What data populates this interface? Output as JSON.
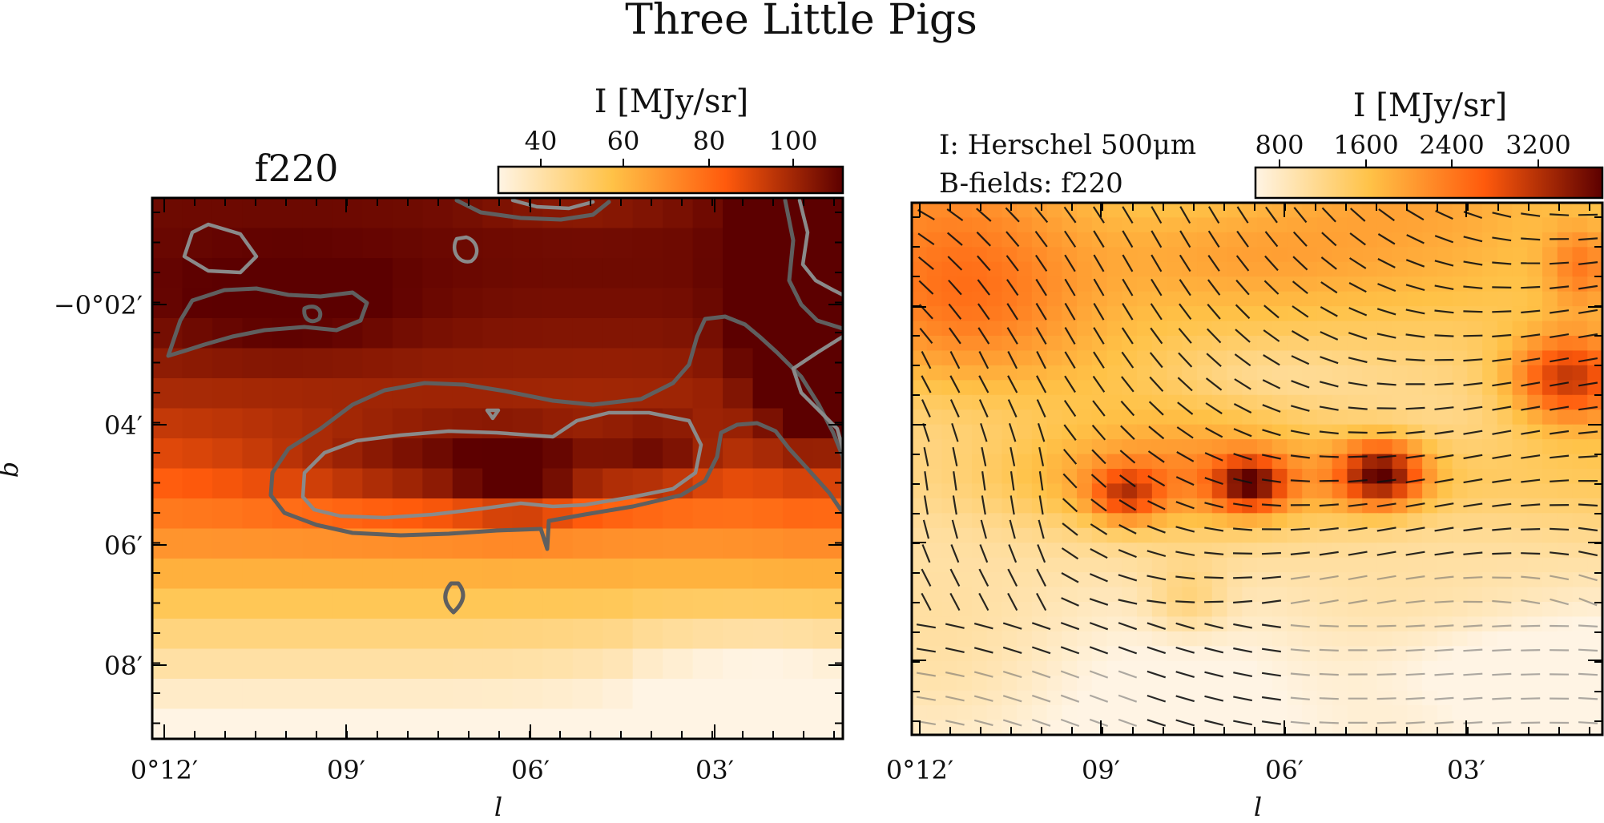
{
  "figure": {
    "title": "Three Little Pigs"
  },
  "chart_data": [
    {
      "type": "heatmap",
      "panel_label": "f220",
      "overlay": "contour",
      "xlabel": "l",
      "ylabel": "b",
      "x_ticklabels": [
        "0°12′",
        "09′",
        "06′",
        "03′"
      ],
      "y_ticklabels": [
        "−0°02′",
        "04′",
        "06′",
        "08′"
      ],
      "colorbar": {
        "label": "I [MJy/sr]",
        "ticklabels": [
          "40",
          "60",
          "80",
          "100"
        ],
        "range": [
          28,
          115
        ],
        "colors": [
          "#fff4e4",
          "#ffc247",
          "#ff5a0c",
          "#5c0000"
        ],
        "location": "top-right"
      },
      "grid": false
    },
    {
      "type": "heatmap",
      "overlay": "polarization vectors",
      "annotation_lines": [
        "I: Herschel 500μm",
        "B-fields: f220"
      ],
      "xlabel": "l",
      "ylabel": "",
      "x_ticklabels": [
        "0°12′",
        "09′",
        "06′",
        "03′"
      ],
      "colorbar": {
        "label": "I [MJy/sr]",
        "ticklabels": [
          "800",
          "1600",
          "2400",
          "3200"
        ],
        "range": [
          400,
          3700
        ],
        "colors": [
          "#fff4e4",
          "#ffc247",
          "#ff5a0c",
          "#5c0000"
        ],
        "location": "top-right"
      },
      "grid": false
    }
  ]
}
